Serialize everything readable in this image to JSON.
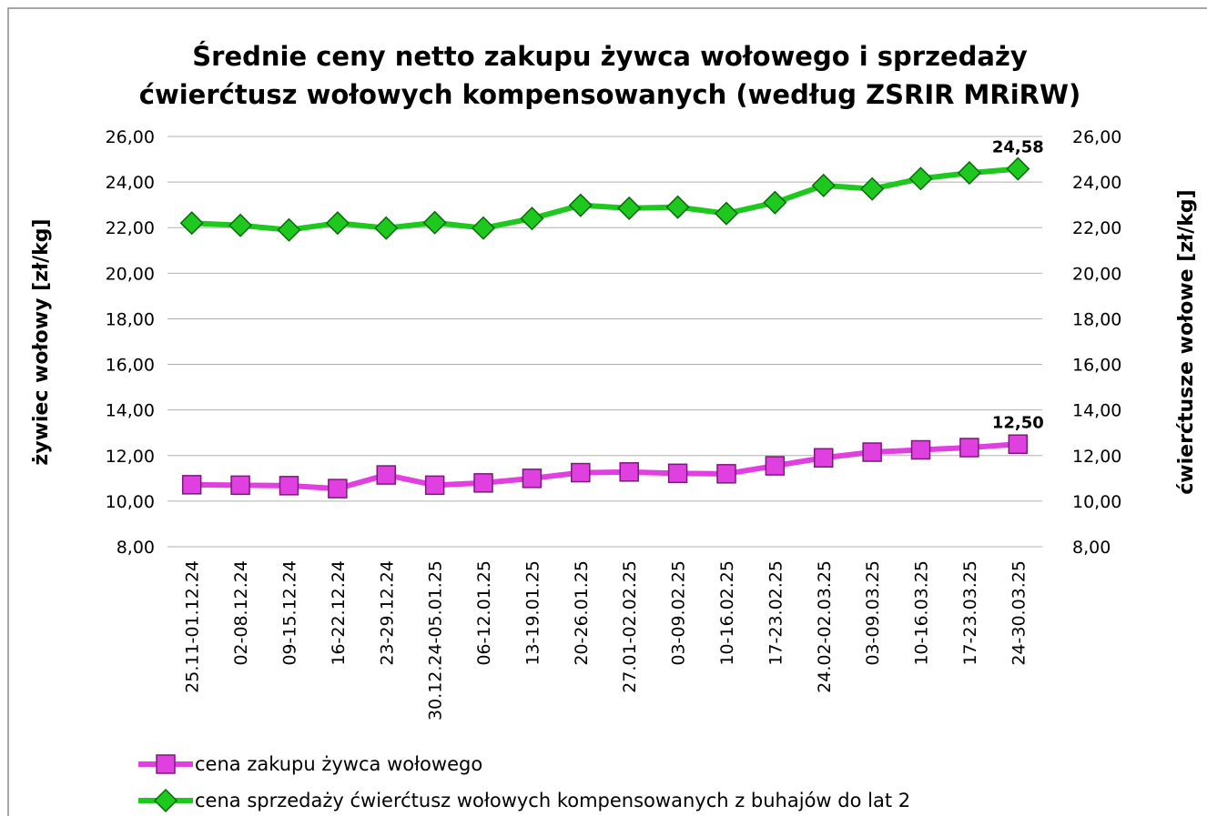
{
  "chart_data": {
    "type": "line",
    "title": [
      "Średnie ceny netto zakupu żywca wołowego i sprzedaży",
      "ćwierćtusz wołowych kompensowanych (według ZSRIR MRiRW)"
    ],
    "ylabel": "żywiec wołowy [zł/kg]",
    "y2label": "ćwierćtusze wołowe  [zł/kg]",
    "categories": [
      "25.11-01.12.24",
      "02-08.12.24",
      "09-15.12.24",
      "16-22.12.24",
      "23-29.12.24",
      "30.12.24-05.01.25",
      "06-12.01.25",
      "13-19.01.25",
      "20-26.01.25",
      "27.01-02.02.25",
      "03-09.02.25",
      "10-16.02.25",
      "17-23.02.25",
      "24.02-02.03.25",
      "03-09.03.25",
      "10-16.03.25",
      "17-23.03.25",
      "24-30.03.25"
    ],
    "series": [
      {
        "name": "cena zakupu żywca wołowego",
        "color": "#e040e0",
        "marker": "square",
        "axis": "y",
        "values": [
          10.72,
          10.7,
          10.68,
          10.55,
          11.15,
          10.7,
          10.8,
          11.0,
          11.25,
          11.28,
          11.22,
          11.2,
          11.55,
          11.9,
          12.15,
          12.25,
          12.35,
          12.5
        ],
        "value_labels": [
          null,
          null,
          null,
          null,
          null,
          null,
          null,
          null,
          null,
          null,
          null,
          null,
          null,
          null,
          null,
          null,
          null,
          "12,50"
        ]
      },
      {
        "name": "cena sprzedaży ćwierćtusz wołowych kompensowanych z buhajów do lat 2",
        "color": "#1ec81e",
        "marker": "diamond",
        "axis": "y2",
        "values": [
          22.2,
          22.1,
          21.9,
          22.2,
          21.98,
          22.22,
          21.98,
          22.4,
          22.98,
          22.85,
          22.9,
          22.62,
          23.1,
          23.85,
          23.7,
          24.15,
          24.4,
          24.58
        ],
        "value_labels": [
          null,
          null,
          null,
          null,
          null,
          null,
          null,
          null,
          null,
          null,
          null,
          null,
          null,
          null,
          null,
          null,
          null,
          "24,58"
        ]
      }
    ],
    "ylim": [
      8,
      26
    ],
    "yticks": [
      {
        "value": 8,
        "label": "8,00"
      },
      {
        "value": 10,
        "label": "10,00"
      },
      {
        "value": 12,
        "label": "12,00"
      },
      {
        "value": 14,
        "label": "14,00"
      },
      {
        "value": 16,
        "label": "16,00"
      },
      {
        "value": 18,
        "label": "18,00"
      },
      {
        "value": 20,
        "label": "20,00"
      },
      {
        "value": 22,
        "label": "22,00"
      },
      {
        "value": 24,
        "label": "24,00"
      },
      {
        "value": 26,
        "label": "26,00"
      }
    ],
    "y2lim": [
      8,
      26
    ],
    "y2ticks": [
      {
        "value": 8,
        "label": "8,00"
      },
      {
        "value": 10,
        "label": "10,00"
      },
      {
        "value": 12,
        "label": "12,00"
      },
      {
        "value": 14,
        "label": "14,00"
      },
      {
        "value": 16,
        "label": "16,00"
      },
      {
        "value": 18,
        "label": "18,00"
      },
      {
        "value": 20,
        "label": "20,00"
      },
      {
        "value": 22,
        "label": "22,00"
      },
      {
        "value": 24,
        "label": "24,00"
      },
      {
        "value": 26,
        "label": "26,00"
      }
    ],
    "grid": true
  }
}
